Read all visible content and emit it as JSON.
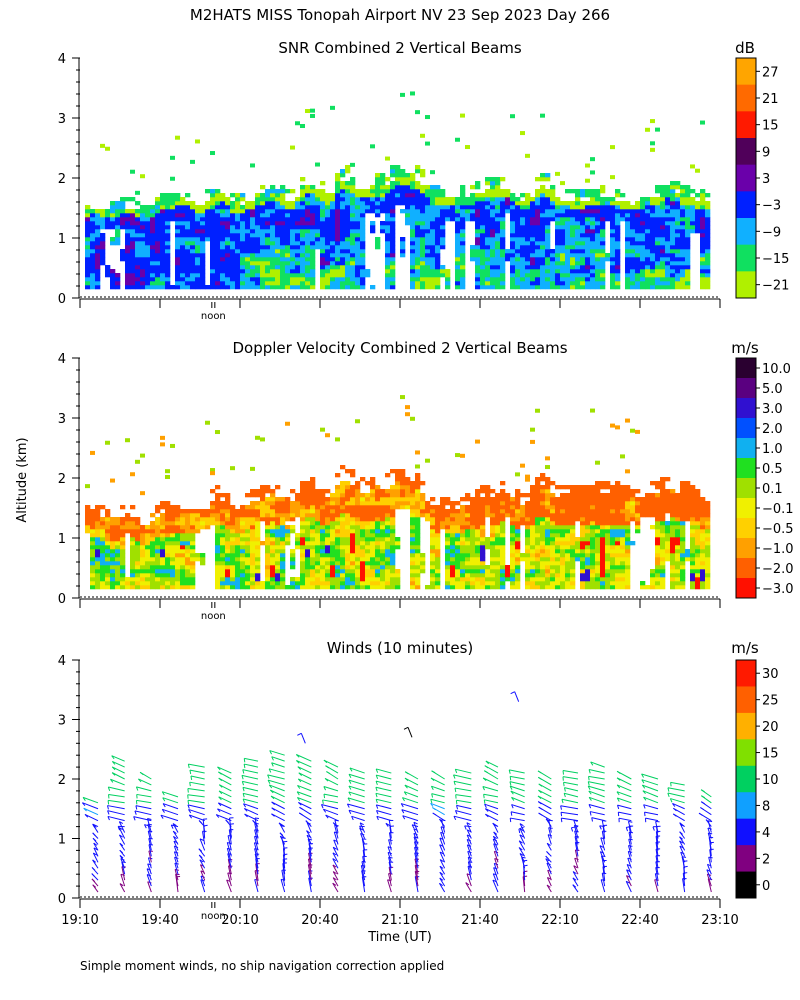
{
  "figure_title": "M2HATS MISS Tonopah Airport NV  23 Sep 2023 Day 266",
  "footnote": "Simple moment winds, no ship navigation correction applied",
  "shared_ylabel": "Altitude (km)",
  "shared_xlabel": "Time (UT)",
  "noon_label": "noon",
  "noon_time": "20:00",
  "chart_data": [
    {
      "type": "heatmap",
      "title": "SNR Combined 2 Vertical Beams",
      "colorbar_unit": "dB",
      "colorbar_ticks": [
        "27",
        "21",
        "15",
        "9",
        "3",
        "−3",
        "−9",
        "−15",
        "−21"
      ],
      "colorbar_colors": [
        "#ffa500",
        "#ff6a00",
        "#ff1a00",
        "#50005a",
        "#6a00aa",
        "#0020ff",
        "#10b0ff",
        "#10e060",
        "#b0f000"
      ],
      "yticks": [
        "0",
        "1",
        "2",
        "3",
        "4"
      ],
      "ylim": [
        0,
        4
      ],
      "xlim": [
        "19:10",
        "23:10"
      ],
      "data_bottom_km": 0.15,
      "layer_top_km": [
        1.5,
        1.7,
        1.9,
        2.1,
        2.0,
        1.9,
        1.8,
        1.8
      ],
      "color_levels_low_to_high": [
        "#b0f000",
        "#10e060",
        "#10b0ff",
        "#0020ff",
        "#6a00aa"
      ]
    },
    {
      "type": "heatmap",
      "title": "Doppler Velocity Combined 2 Vertical Beams",
      "colorbar_unit": "m/s",
      "colorbar_ticks": [
        "10.0",
        "5.0",
        "3.0",
        "2.0",
        "1.0",
        "0.5",
        "0.1",
        "−0.1",
        "−0.5",
        "−1.0",
        "−2.0",
        "−3.0"
      ],
      "colorbar_colors": [
        "#2a0030",
        "#5a0080",
        "#3010d0",
        "#0050ff",
        "#10b0f0",
        "#20e020",
        "#a0e000",
        "#f0f000",
        "#ffd000",
        "#ffa000",
        "#ff6000",
        "#ff1000"
      ],
      "yticks": [
        "0",
        "1",
        "2",
        "3",
        "4"
      ],
      "ylim": [
        0,
        4
      ],
      "xlim": [
        "19:10",
        "23:10"
      ],
      "data_bottom_km": 0.15,
      "layer_top_km": [
        1.4,
        1.5,
        1.9,
        2.1,
        1.8,
        1.9,
        1.9,
        1.8
      ],
      "color_levels": [
        "#10b0f0",
        "#20e020",
        "#a0e000",
        "#f0f000",
        "#ffd000",
        "#ffa000",
        "#ff6000"
      ]
    },
    {
      "type": "scatter",
      "title": "Winds (10 minutes)",
      "colorbar_unit": "m/s",
      "colorbar_ticks": [
        "30",
        "25",
        "20",
        "15",
        "10",
        "8",
        "4",
        "2",
        "0"
      ],
      "colorbar_colors": [
        "#ff1a00",
        "#ff6000",
        "#ffb000",
        "#80e000",
        "#00d060",
        "#10a0ff",
        "#1010ff",
        "#800080",
        "#000000"
      ],
      "yticks": [
        "0",
        "1",
        "2",
        "3",
        "4"
      ],
      "ylim": [
        0,
        4
      ],
      "xticks": [
        "19:10",
        "19:40",
        "20:10",
        "20:40",
        "21:10",
        "21:40",
        "22:10",
        "22:40",
        "23:10"
      ],
      "xlim": [
        "19:10",
        "23:10"
      ],
      "profile_times_utc": [
        "19:10",
        "19:20",
        "19:30",
        "19:40",
        "19:50",
        "20:00",
        "20:10",
        "20:20",
        "20:30",
        "20:40",
        "20:50",
        "21:00",
        "21:10",
        "21:20",
        "21:30",
        "21:40",
        "21:50",
        "22:00",
        "22:10",
        "22:20",
        "22:30",
        "22:40",
        "22:50",
        "23:00"
      ],
      "profile_top_km": [
        1.7,
        2.4,
        2.1,
        1.8,
        2.3,
        2.2,
        2.4,
        2.5,
        2.4,
        2.3,
        2.2,
        2.2,
        2.1,
        2.1,
        2.2,
        2.3,
        2.2,
        2.1,
        2.2,
        2.3,
        2.1,
        2.1,
        2.0,
        1.8
      ],
      "isolated_barbs_km": [
        3.3,
        2.7,
        2.6
      ]
    }
  ]
}
